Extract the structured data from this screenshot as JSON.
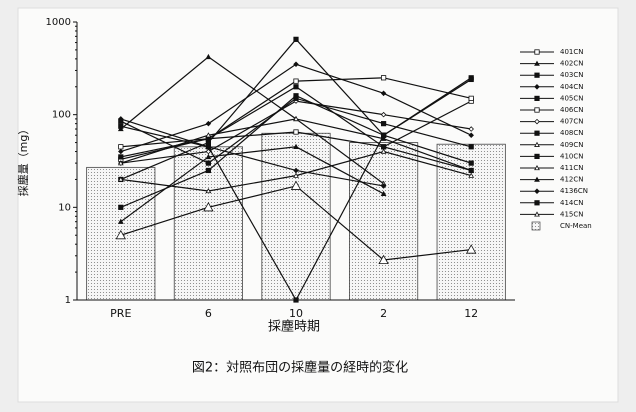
{
  "chart_data": {
    "type": "bar",
    "caption": "図2：対照布団の採塵量の経時的変化",
    "x_label": "採塵時期",
    "y_label": "採塵量（mg）",
    "categories": [
      "PRE",
      "6",
      "10",
      "2",
      "12"
    ],
    "log_scale": true,
    "ylim": [
      1,
      1000
    ],
    "yticks": [
      1,
      10,
      100,
      1000
    ],
    "color": "#111111",
    "legend": "right",
    "series": [
      {
        "name": "401CN",
        "type": "line",
        "values": [
          33,
          55,
          65,
          45,
          140
        ]
      },
      {
        "name": "402CN",
        "type": "line",
        "values": [
          70,
          420,
          90,
          55,
          25
        ]
      },
      {
        "name": "403CN",
        "type": "line",
        "values": [
          20,
          50,
          650,
          60,
          250
        ]
      },
      {
        "name": "404CN",
        "type": "line",
        "values": [
          40,
          80,
          350,
          170,
          60
        ]
      },
      {
        "name": "405CN",
        "type": "line",
        "values": [
          75,
          45,
          1,
          60,
          240
        ]
      },
      {
        "name": "406CN",
        "type": "line",
        "values": [
          45,
          55,
          230,
          250,
          150
        ]
      },
      {
        "name": "407CN",
        "type": "line",
        "values": [
          30,
          40,
          140,
          100,
          70
        ]
      },
      {
        "name": "408CN",
        "type": "line",
        "values": [
          10,
          25,
          160,
          60,
          30
        ]
      },
      {
        "name": "409CN",
        "type": "line",
        "values": [
          20,
          15,
          22,
          40,
          22
        ]
      },
      {
        "name": "410CN",
        "type": "line",
        "values": [
          35,
          55,
          200,
          45,
          25
        ]
      },
      {
        "name": "411CN",
        "type": "line",
        "values": [
          30,
          60,
          90,
          18,
          null
        ]
      },
      {
        "name": "412CN",
        "type": "line",
        "values": [
          7,
          35,
          45,
          14,
          null
        ]
      },
      {
        "name": "4136CN",
        "type": "line",
        "values": [
          90,
          45,
          25,
          17,
          null
        ]
      },
      {
        "name": "414CN",
        "type": "line",
        "values": [
          85,
          30,
          150,
          80,
          45
        ]
      },
      {
        "name": "415CN",
        "type": "line",
        "values": [
          5,
          10,
          17,
          2.7,
          3.5
        ]
      },
      {
        "name": "CN-Mean",
        "type": "bar",
        "values": [
          27,
          45,
          63,
          50,
          48
        ]
      }
    ]
  }
}
